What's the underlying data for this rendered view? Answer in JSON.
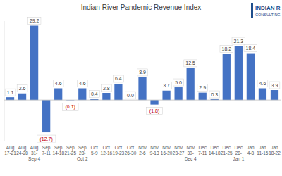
{
  "chart_data": {
    "type": "bar",
    "title": "Indian River Pandemic Revenue Index",
    "categories": [
      "Aug 17-21",
      "Aug 24-28",
      "Aug 31-Sep 4",
      "Sep 7-11",
      "Sep 14-18",
      "Sep 21-25",
      "Sep 28-Oct 2",
      "Oct 5-9",
      "Oct 12-16",
      "Oct 19-23",
      "Oct 26-30",
      "Nov 2-6",
      "Nov 9-13",
      "Nov 16-20",
      "Nov 23-27",
      "Nov 30-Dec 4",
      "Dec 7-11",
      "Dec 14-18",
      "Dec 21-25",
      "Dec 28-Jan 1",
      "Jan 4-8",
      "Jan 11-15",
      "Jan 18-22"
    ],
    "values": [
      1.1,
      2.6,
      29.2,
      -12.7,
      4.6,
      -0.1,
      4.6,
      0.4,
      2.8,
      6.4,
      0.0,
      8.9,
      -1.8,
      3.7,
      5.0,
      12.5,
      2.9,
      0.3,
      18.2,
      21.3,
      18.4,
      4.6,
      3.9
    ],
    "value_labels": [
      "1.1",
      "2.6",
      "29.2",
      "(12.7)",
      "4.6",
      "(0.1)",
      "4.6",
      "0.4",
      "2.8",
      "6.4",
      "0.0",
      "8.9",
      "(1.8)",
      "3.7",
      "5.0",
      "12.5",
      "2.9",
      "0.3",
      "18.2",
      "21.3",
      "18.4",
      "4.6",
      "3.9"
    ],
    "color": "#4472c4",
    "ylim": [
      -16,
      31
    ],
    "data_labels": true,
    "tick_labels": "x",
    "grid": false
  },
  "logo": [
    "INDIAN R",
    "CONSULTING"
  ]
}
